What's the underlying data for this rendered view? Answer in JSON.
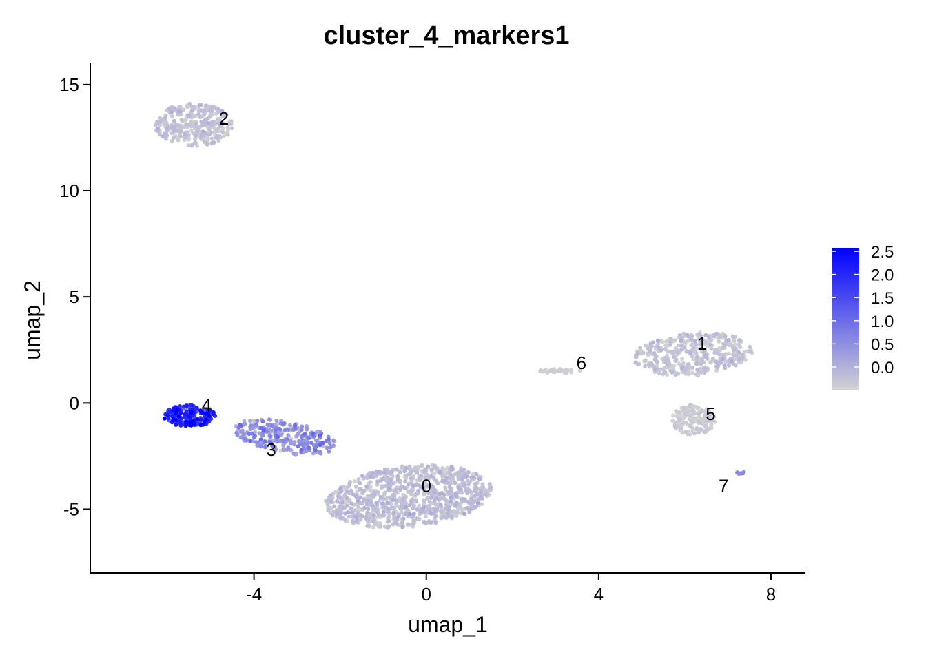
{
  "chart_data": {
    "type": "scatter",
    "title": "cluster_4_markers1",
    "xlabel": "umap_1",
    "ylabel": "umap_2",
    "xlim": [
      -7.8,
      8.8
    ],
    "ylim": [
      -8.0,
      16.0
    ],
    "xticks": [
      -4,
      0,
      4,
      8
    ],
    "xtick_labels": [
      "-4",
      "0",
      "4",
      "8"
    ],
    "yticks": [
      -5,
      0,
      5,
      10,
      15
    ],
    "ytick_labels": [
      "-5",
      "0",
      "5",
      "10",
      "15"
    ],
    "grid": false,
    "colorbar": {
      "min": 0.0,
      "max": 2.5,
      "low_color": "#d3d3d3",
      "high_color": "#0000ff",
      "ticks": [
        0.0,
        0.5,
        1.0,
        1.5,
        2.0,
        2.5
      ],
      "tick_labels": [
        "0.0",
        "0.5",
        "1.0",
        "1.5",
        "2.0",
        "2.5"
      ],
      "position": "right"
    },
    "cluster_labels": [
      {
        "label": "0",
        "x": 0.0,
        "y": -3.9
      },
      {
        "label": "1",
        "x": 6.4,
        "y": 2.8
      },
      {
        "label": "2",
        "x": -4.7,
        "y": 13.4
      },
      {
        "label": "3",
        "x": -3.6,
        "y": -2.2
      },
      {
        "label": "4",
        "x": -5.1,
        "y": -0.1
      },
      {
        "label": "5",
        "x": 6.6,
        "y": -0.5
      },
      {
        "label": "6",
        "x": 3.6,
        "y": 1.9
      },
      {
        "label": "7",
        "x": 6.9,
        "y": -3.9
      }
    ],
    "clusters": [
      {
        "id": "0",
        "n": 900,
        "shape": "ellipse",
        "cx": -0.4,
        "cy": -4.4,
        "rx": 2.0,
        "ry": 1.4,
        "rot": 20,
        "expr_mean": 0.18,
        "expr_sd": 0.12
      },
      {
        "id": "1",
        "n": 380,
        "shape": "ellipse",
        "cx": 6.2,
        "cy": 2.3,
        "rx": 1.4,
        "ry": 1.0,
        "rot": 15,
        "expr_mean": 0.12,
        "expr_sd": 0.12
      },
      {
        "id": "2",
        "n": 300,
        "shape": "ellipse",
        "cx": -5.4,
        "cy": 13.1,
        "rx": 0.9,
        "ry": 1.0,
        "rot": 0,
        "expr_mean": 0.15,
        "expr_sd": 0.1
      },
      {
        "id": "3",
        "n": 260,
        "shape": "ellipse",
        "cx": -3.3,
        "cy": -1.6,
        "rx": 1.3,
        "ry": 0.7,
        "rot": -25,
        "expr_mean": 0.7,
        "expr_sd": 0.3
      },
      {
        "id": "4",
        "n": 170,
        "shape": "ellipse",
        "cx": -5.5,
        "cy": -0.6,
        "rx": 0.6,
        "ry": 0.5,
        "rot": 0,
        "expr_mean": 2.0,
        "expr_sd": 0.35
      },
      {
        "id": "5",
        "n": 150,
        "shape": "ellipse",
        "cx": 6.2,
        "cy": -0.8,
        "rx": 0.5,
        "ry": 0.7,
        "rot": 0,
        "expr_mean": 0.05,
        "expr_sd": 0.06
      },
      {
        "id": "6",
        "n": 28,
        "shape": "ellipse",
        "cx": 3.1,
        "cy": 1.5,
        "rx": 0.5,
        "ry": 0.1,
        "rot": 0,
        "expr_mean": 0.05,
        "expr_sd": 0.05
      },
      {
        "id": "7",
        "n": 8,
        "shape": "ellipse",
        "cx": 7.3,
        "cy": -3.3,
        "rx": 0.1,
        "ry": 0.1,
        "rot": 0,
        "expr_mean": 0.8,
        "expr_sd": 0.1
      }
    ]
  }
}
